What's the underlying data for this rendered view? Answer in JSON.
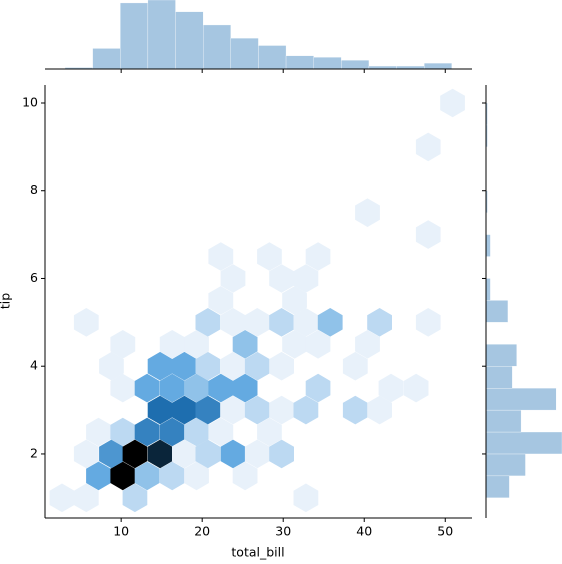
{
  "chart_data": [
    {
      "type": "hexbin",
      "xlabel": "total_bill",
      "ylabel": "tip",
      "xlim": [
        0.6,
        53.3
      ],
      "ylim": [
        0.54,
        10.41
      ],
      "xticks": [
        10,
        20,
        30,
        40,
        50
      ],
      "yticks": [
        2,
        4,
        6,
        8,
        10
      ],
      "colors": [
        "#e8f1fa",
        "#64aae1",
        "#1e6eaf",
        "#000000"
      ],
      "hexbins": [
        {
          "x": 2.7,
          "y": 1.0,
          "count": 1
        },
        {
          "x": 5.7,
          "y": 1.0,
          "count": 1
        },
        {
          "x": 11.7,
          "y": 1.0,
          "count": 2
        },
        {
          "x": 32.8,
          "y": 1.0,
          "count": 1
        },
        {
          "x": 7.2,
          "y": 1.5,
          "count": 4
        },
        {
          "x": 10.2,
          "y": 1.5,
          "count": 10
        },
        {
          "x": 13.2,
          "y": 1.5,
          "count": 3
        },
        {
          "x": 16.3,
          "y": 1.5,
          "count": 2
        },
        {
          "x": 19.3,
          "y": 1.5,
          "count": 1
        },
        {
          "x": 25.3,
          "y": 1.5,
          "count": 1
        },
        {
          "x": 5.7,
          "y": 2.0,
          "count": 1
        },
        {
          "x": 8.8,
          "y": 2.0,
          "count": 5
        },
        {
          "x": 11.7,
          "y": 2.0,
          "count": 10
        },
        {
          "x": 14.8,
          "y": 2.0,
          "count": 9
        },
        {
          "x": 17.8,
          "y": 2.0,
          "count": 1
        },
        {
          "x": 20.7,
          "y": 2.0,
          "count": 2
        },
        {
          "x": 23.8,
          "y": 2.0,
          "count": 4
        },
        {
          "x": 26.8,
          "y": 2.0,
          "count": 1
        },
        {
          "x": 29.8,
          "y": 2.0,
          "count": 2
        },
        {
          "x": 7.2,
          "y": 2.5,
          "count": 1
        },
        {
          "x": 10.2,
          "y": 2.5,
          "count": 2
        },
        {
          "x": 13.2,
          "y": 2.5,
          "count": 6
        },
        {
          "x": 16.3,
          "y": 2.5,
          "count": 6
        },
        {
          "x": 19.3,
          "y": 2.5,
          "count": 2
        },
        {
          "x": 22.3,
          "y": 2.5,
          "count": 1
        },
        {
          "x": 28.3,
          "y": 2.5,
          "count": 1
        },
        {
          "x": 14.8,
          "y": 3.0,
          "count": 7
        },
        {
          "x": 17.8,
          "y": 3.0,
          "count": 7
        },
        {
          "x": 20.7,
          "y": 3.0,
          "count": 6
        },
        {
          "x": 23.8,
          "y": 3.0,
          "count": 1
        },
        {
          "x": 26.8,
          "y": 3.0,
          "count": 2
        },
        {
          "x": 29.8,
          "y": 3.0,
          "count": 1
        },
        {
          "x": 32.8,
          "y": 3.0,
          "count": 2
        },
        {
          "x": 38.9,
          "y": 3.0,
          "count": 2
        },
        {
          "x": 41.9,
          "y": 3.0,
          "count": 1
        },
        {
          "x": 10.2,
          "y": 3.5,
          "count": 1
        },
        {
          "x": 13.2,
          "y": 3.5,
          "count": 4
        },
        {
          "x": 16.3,
          "y": 3.5,
          "count": 4
        },
        {
          "x": 19.3,
          "y": 3.5,
          "count": 3
        },
        {
          "x": 22.3,
          "y": 3.5,
          "count": 4
        },
        {
          "x": 25.3,
          "y": 3.5,
          "count": 4
        },
        {
          "x": 34.3,
          "y": 3.5,
          "count": 2
        },
        {
          "x": 43.3,
          "y": 3.5,
          "count": 1
        },
        {
          "x": 46.4,
          "y": 3.5,
          "count": 1
        },
        {
          "x": 8.8,
          "y": 4.0,
          "count": 1
        },
        {
          "x": 14.8,
          "y": 4.0,
          "count": 4
        },
        {
          "x": 17.8,
          "y": 4.0,
          "count": 4
        },
        {
          "x": 20.7,
          "y": 4.0,
          "count": 2
        },
        {
          "x": 23.8,
          "y": 4.0,
          "count": 1
        },
        {
          "x": 26.8,
          "y": 4.0,
          "count": 2
        },
        {
          "x": 29.8,
          "y": 4.0,
          "count": 1
        },
        {
          "x": 38.9,
          "y": 4.0,
          "count": 1
        },
        {
          "x": 10.2,
          "y": 4.5,
          "count": 1
        },
        {
          "x": 16.3,
          "y": 4.5,
          "count": 1
        },
        {
          "x": 19.3,
          "y": 4.5,
          "count": 1
        },
        {
          "x": 25.3,
          "y": 4.5,
          "count": 3
        },
        {
          "x": 31.4,
          "y": 4.5,
          "count": 1
        },
        {
          "x": 34.3,
          "y": 4.5,
          "count": 1
        },
        {
          "x": 40.4,
          "y": 4.5,
          "count": 1
        },
        {
          "x": 5.7,
          "y": 5.0,
          "count": 1
        },
        {
          "x": 20.7,
          "y": 5.0,
          "count": 2
        },
        {
          "x": 23.8,
          "y": 5.0,
          "count": 1
        },
        {
          "x": 26.8,
          "y": 5.0,
          "count": 1
        },
        {
          "x": 29.8,
          "y": 5.0,
          "count": 2
        },
        {
          "x": 32.8,
          "y": 5.0,
          "count": 1
        },
        {
          "x": 35.8,
          "y": 5.0,
          "count": 3
        },
        {
          "x": 41.9,
          "y": 5.0,
          "count": 2
        },
        {
          "x": 47.9,
          "y": 5.0,
          "count": 1
        },
        {
          "x": 22.3,
          "y": 5.5,
          "count": 1
        },
        {
          "x": 31.4,
          "y": 5.5,
          "count": 1
        },
        {
          "x": 23.8,
          "y": 6.0,
          "count": 1
        },
        {
          "x": 29.8,
          "y": 6.0,
          "count": 1
        },
        {
          "x": 32.8,
          "y": 6.0,
          "count": 1
        },
        {
          "x": 22.3,
          "y": 6.5,
          "count": 1
        },
        {
          "x": 28.3,
          "y": 6.5,
          "count": 1
        },
        {
          "x": 34.3,
          "y": 6.5,
          "count": 1
        },
        {
          "x": 47.9,
          "y": 7.0,
          "count": 1
        },
        {
          "x": 40.4,
          "y": 7.5,
          "count": 1
        },
        {
          "x": 47.9,
          "y": 9.0,
          "count": 1
        },
        {
          "x": 50.9,
          "y": 10.0,
          "count": 1
        }
      ]
    },
    {
      "type": "histogram",
      "orientation": "vertical",
      "color": "#a6c6e1",
      "ylim": [
        0,
        47
      ],
      "bins": [
        3.07,
        6.48,
        9.89,
        13.3,
        16.71,
        20.12,
        23.53,
        26.94,
        30.35,
        33.76,
        37.17,
        40.58,
        43.99,
        47.4,
        50.81
      ],
      "values": [
        1,
        14,
        45,
        47,
        39,
        30,
        21,
        16,
        9,
        8,
        6,
        2,
        2,
        4
      ]
    },
    {
      "type": "histogram",
      "orientation": "horizontal",
      "color": "#a6c6e1",
      "xlim": [
        0,
        52
      ],
      "bins": [
        1,
        1.5,
        2,
        2.5,
        3,
        3.5,
        4,
        4.5,
        5,
        5.5,
        6,
        6.5,
        7,
        7.5,
        8,
        8.5,
        9,
        9.5,
        10
      ],
      "values": [
        16,
        27,
        52,
        24,
        48,
        18,
        21,
        0,
        15,
        3,
        0,
        3,
        0,
        1,
        0,
        0,
        1,
        1
      ]
    }
  ]
}
